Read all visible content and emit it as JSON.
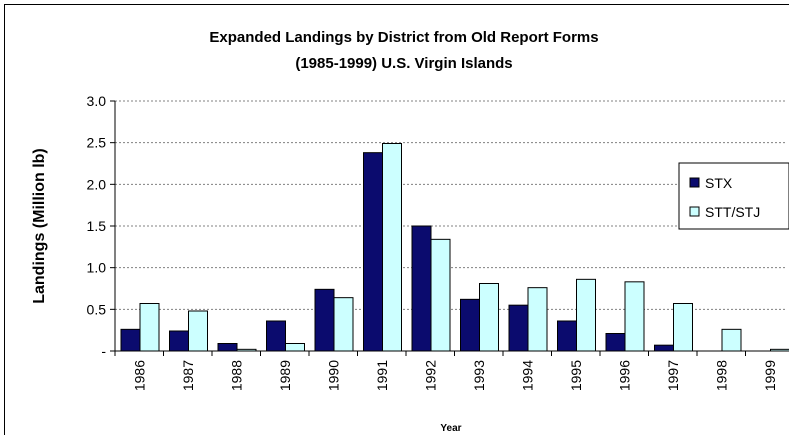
{
  "chart_data": {
    "type": "bar",
    "title": "Expanded Landings by District from Old Report Forms",
    "subtitle": "(1985-1999) U.S. Virgin Islands",
    "xlabel": "Year",
    "ylabel": "Landings (Million lb)",
    "ylim": [
      0,
      3.0
    ],
    "yticks": [
      0,
      0.5,
      1.0,
      1.5,
      2.0,
      2.5,
      3.0
    ],
    "ytick_labels": [
      "-",
      "0.5",
      "1.0",
      "1.5",
      "2.0",
      "2.5",
      "3.0"
    ],
    "categories": [
      "1986",
      "1987",
      "1988",
      "1989",
      "1990",
      "1991",
      "1992",
      "1993",
      "1994",
      "1995",
      "1996",
      "1997",
      "1998",
      "1999"
    ],
    "series": [
      {
        "name": "STX",
        "color": "#0b0b6e",
        "values": [
          0.26,
          0.24,
          0.09,
          0.36,
          0.74,
          2.38,
          1.5,
          0.62,
          0.55,
          0.36,
          0.21,
          0.07,
          0.0,
          0.0
        ]
      },
      {
        "name": "STT/STJ",
        "color": "#ccffff",
        "values": [
          0.57,
          0.48,
          0.02,
          0.09,
          0.64,
          2.49,
          1.34,
          0.81,
          0.76,
          0.86,
          0.83,
          0.57,
          0.26,
          0.02
        ]
      }
    ],
    "grid": true,
    "legend_position": "right"
  }
}
